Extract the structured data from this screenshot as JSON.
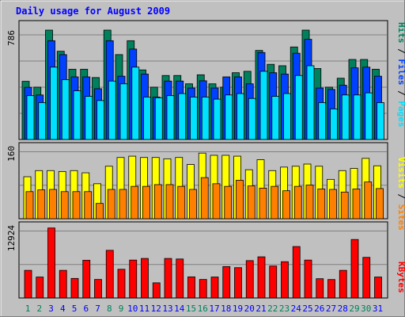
{
  "chart_data": [
    {
      "type": "bar",
      "title": "Daily usage for August 2009",
      "panel": "top",
      "ymax_label": "786",
      "ylim": [
        0,
        786
      ],
      "categories": [
        "1",
        "2",
        "3",
        "4",
        "5",
        "6",
        "7",
        "8",
        "9",
        "10",
        "11",
        "12",
        "13",
        "14",
        "15",
        "16",
        "17",
        "18",
        "19",
        "20",
        "21",
        "22",
        "23",
        "24",
        "25",
        "26",
        "27",
        "28",
        "29",
        "30",
        "31"
      ],
      "weekend_days": [
        "1",
        "2",
        "8",
        "9",
        "15",
        "16",
        "22",
        "23",
        "29",
        "30"
      ],
      "series": [
        {
          "name": "Hits",
          "color": "#00805c",
          "values": [
            418,
            376,
            786,
            634,
            505,
            505,
            445,
            786,
            610,
            710,
            500,
            376,
            460,
            460,
            400,
            465,
            400,
            376,
            480,
            490,
            640,
            540,
            530,
            665,
            786,
            510,
            376,
            440,
            575,
            575,
            505
          ]
        },
        {
          "name": "Files",
          "color": "#0040ff",
          "values": [
            375,
            320,
            710,
            610,
            450,
            450,
            365,
            710,
            455,
            650,
            470,
            305,
            420,
            420,
            370,
            422,
            370,
            450,
            450,
            400,
            625,
            480,
            470,
            620,
            720,
            370,
            360,
            390,
            515,
            520,
            455
          ]
        },
        {
          "name": "Pages",
          "color": "#00e0ff",
          "values": [
            315,
            265,
            520,
            430,
            350,
            310,
            280,
            420,
            400,
            520,
            305,
            300,
            315,
            330,
            305,
            305,
            290,
            320,
            330,
            295,
            490,
            310,
            330,
            460,
            530,
            265,
            220,
            320,
            320,
            335,
            265
          ]
        }
      ]
    },
    {
      "type": "bar",
      "panel": "middle",
      "ymax_label": "160",
      "ylim": [
        0,
        160
      ],
      "categories": [
        "1",
        "2",
        "3",
        "4",
        "5",
        "6",
        "7",
        "8",
        "9",
        "10",
        "11",
        "12",
        "13",
        "14",
        "15",
        "16",
        "17",
        "18",
        "19",
        "20",
        "21",
        "22",
        "23",
        "24",
        "25",
        "26",
        "27",
        "28",
        "29",
        "30",
        "31"
      ],
      "series": [
        {
          "name": "Visits",
          "color": "#ffff00",
          "values": [
            96,
            110,
            110,
            108,
            110,
            105,
            80,
            120,
            140,
            143,
            140,
            140,
            137,
            140,
            124,
            150,
            145,
            145,
            143,
            112,
            135,
            110,
            118,
            120,
            125,
            120,
            90,
            110,
            115,
            138,
            121
          ]
        },
        {
          "name": "Sites",
          "color": "#ff8000",
          "values": [
            62,
            66,
            67,
            62,
            62,
            62,
            35,
            67,
            67,
            74,
            74,
            78,
            78,
            74,
            67,
            94,
            80,
            74,
            88,
            75,
            70,
            74,
            64,
            74,
            77,
            68,
            67,
            61,
            68,
            84,
            69
          ]
        }
      ]
    },
    {
      "type": "bar",
      "panel": "bottom",
      "ymax_label": "12924",
      "ylim": [
        0,
        12924
      ],
      "categories": [
        "1",
        "2",
        "3",
        "4",
        "5",
        "6",
        "7",
        "8",
        "9",
        "10",
        "11",
        "12",
        "13",
        "14",
        "15",
        "16",
        "17",
        "18",
        "19",
        "20",
        "21",
        "22",
        "23",
        "24",
        "25",
        "26",
        "27",
        "28",
        "29",
        "30",
        "31"
      ],
      "series": [
        {
          "name": "KBytes",
          "color": "#ff0000",
          "values": [
            5100,
            3870,
            12924,
            5100,
            3610,
            6970,
            3420,
            8800,
            5300,
            7000,
            7300,
            2800,
            7300,
            7200,
            3900,
            3420,
            3870,
            5800,
            5600,
            6900,
            7600,
            5900,
            6700,
            9500,
            7000,
            3560,
            3410,
            5100,
            10800,
            7500,
            3870
          ]
        }
      ]
    }
  ],
  "legend_right": {
    "top": {
      "pages": "Pages",
      "files": "Files",
      "hits": "Hits",
      "sep1": " / ",
      "sep2": " / "
    },
    "middle": {
      "sites": "Sites",
      "visits": "Visits",
      "sep": " / "
    },
    "bottom": {
      "kbytes": "KBytes"
    }
  },
  "colors": {
    "background": "#c0c0c0",
    "title": "#0000ff",
    "weekday_label": "#0000ff",
    "weekend_label": "#00805c",
    "grid": "#808080"
  }
}
